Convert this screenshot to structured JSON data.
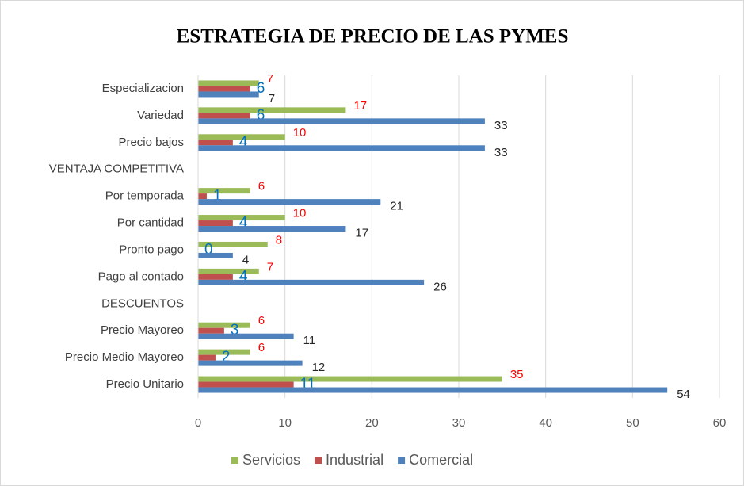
{
  "chart_data": {
    "type": "hbar",
    "title": "ESTRATEGIA DE PRECIO  DE LAS PYMES",
    "categories": [
      "Especializacion",
      "Variedad",
      "Precio bajos",
      "VENTAJA COMPETITIVA",
      "Por temporada",
      "Por cantidad",
      "Pronto pago",
      "Pago al contado",
      "DESCUENTOS",
      "Precio  Mayoreo",
      "Precio Medio Mayoreo",
      "Precio Unitario"
    ],
    "series": [
      {
        "name": "Servicios",
        "color": "#9bbb59",
        "label_color": "#ff0000",
        "values": [
          7,
          17,
          10,
          null,
          6,
          10,
          8,
          7,
          null,
          6,
          6,
          35
        ]
      },
      {
        "name": "Industrial",
        "color": "#c0504d",
        "label_color": "#0070c0",
        "values": [
          6,
          6,
          4,
          null,
          1,
          4,
          0,
          4,
          null,
          3,
          2,
          11
        ]
      },
      {
        "name": "Comercial",
        "color": "#4f81bd",
        "label_color": "#262626",
        "values": [
          7,
          33,
          33,
          null,
          21,
          17,
          4,
          26,
          null,
          11,
          12,
          54
        ]
      }
    ],
    "xlim": [
      0,
      60
    ],
    "xticks": [
      0,
      10,
      20,
      30,
      40,
      50,
      60
    ],
    "grid": true,
    "legend": "bottom"
  }
}
